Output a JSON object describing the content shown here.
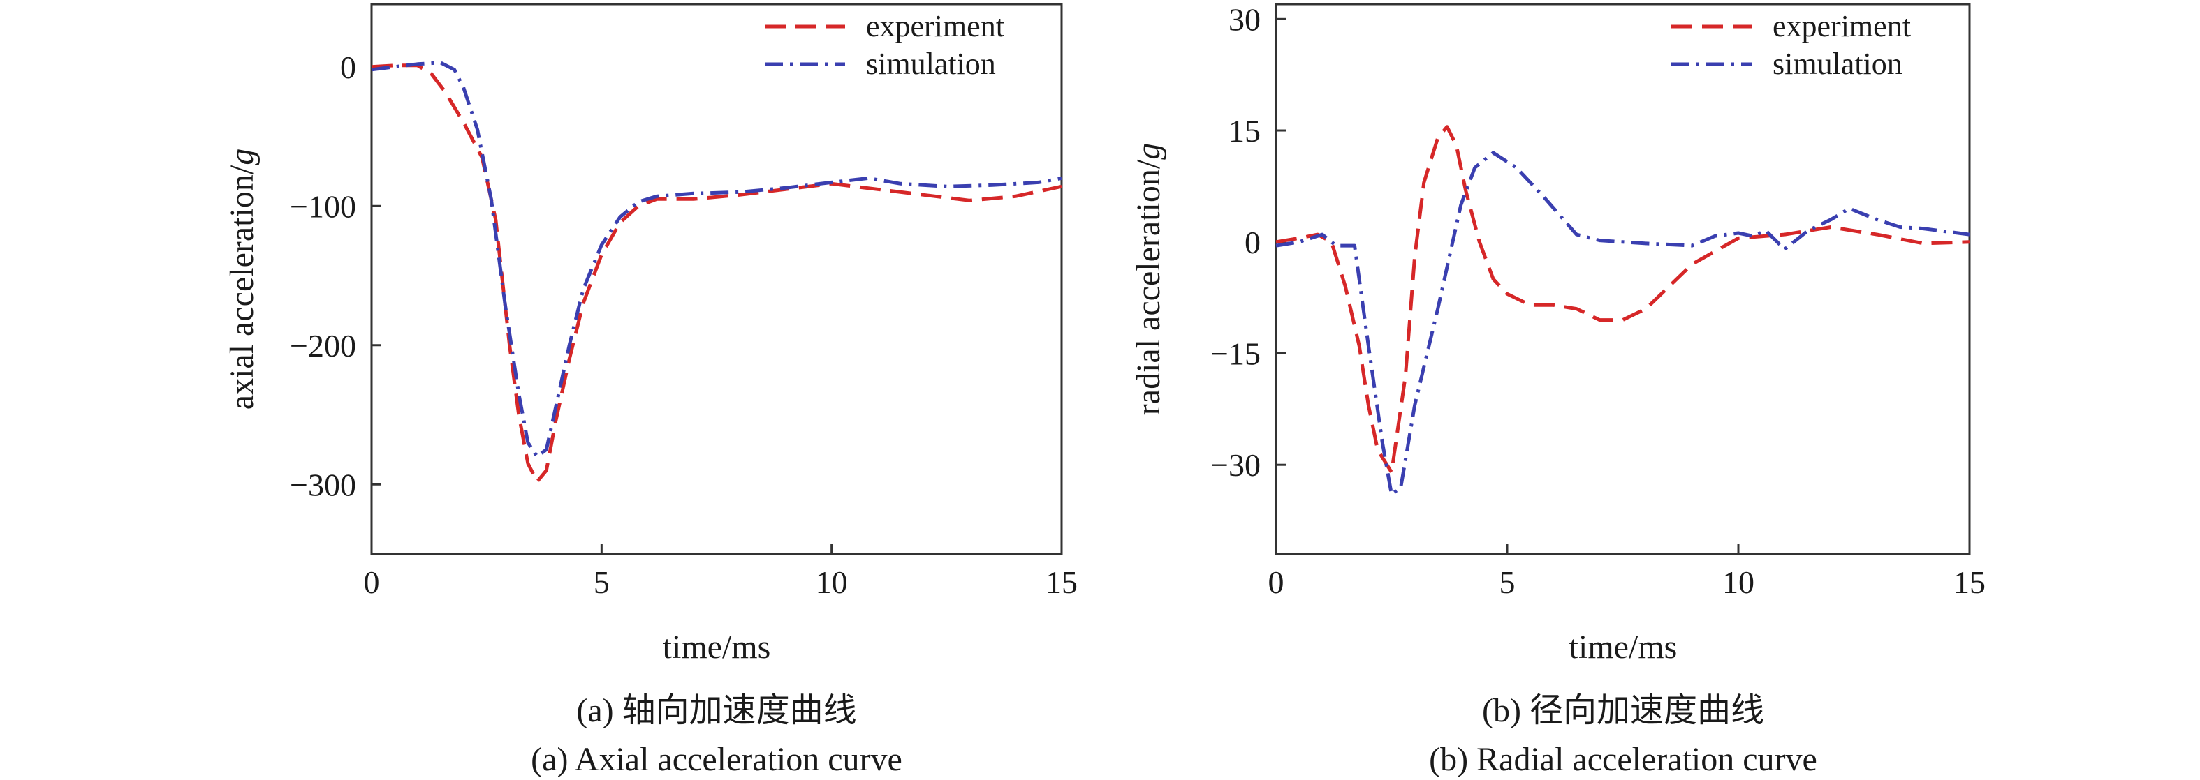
{
  "chart_data": [
    {
      "type": "line",
      "caption_cn": "(a) 轴向加速度曲线",
      "caption_en": "(a) Axial acceleration curve",
      "xlabel": "time/ms",
      "ylabel_main": "axial acceleration/",
      "ylabel_unit": "g",
      "xlim": [
        0,
        15
      ],
      "ylim": [
        -350,
        45
      ],
      "xticks": [
        0,
        5,
        10,
        15
      ],
      "xtick_labels": [
        "0",
        "5",
        "10",
        "15"
      ],
      "yticks": [
        0,
        -100,
        -200,
        -300
      ],
      "ytick_labels": [
        "0",
        "−100",
        "−200",
        "−300"
      ],
      "grid": false,
      "legend_position": "top-right",
      "series": [
        {
          "name": "experiment",
          "color": "#d62728",
          "dash": "dashed",
          "x": [
            0,
            0.5,
            1.0,
            1.3,
            1.6,
            2.0,
            2.4,
            2.7,
            3.0,
            3.2,
            3.4,
            3.6,
            3.8,
            4.0,
            4.3,
            4.6,
            5.0,
            5.4,
            5.8,
            6.2,
            7.0,
            8.0,
            9.0,
            10.0,
            11.0,
            12.0,
            13.0,
            14.0,
            15.0
          ],
          "y": [
            0,
            1,
            1,
            -5,
            -18,
            -40,
            -65,
            -110,
            -200,
            -250,
            -285,
            -298,
            -290,
            -255,
            -210,
            -170,
            -135,
            -112,
            -100,
            -95,
            -95,
            -92,
            -88,
            -84,
            -88,
            -92,
            -96,
            -93,
            -86
          ]
        },
        {
          "name": "simulation",
          "color": "#3a3fb0",
          "dash": "dashdot",
          "x": [
            0,
            0.5,
            1.0,
            1.5,
            1.8,
            2.0,
            2.3,
            2.6,
            2.9,
            3.2,
            3.4,
            3.6,
            3.8,
            4.0,
            4.3,
            4.6,
            5.0,
            5.4,
            5.8,
            6.2,
            7.0,
            8.0,
            9.0,
            10.0,
            10.8,
            11.5,
            12.5,
            13.5,
            14.5,
            15.0
          ],
          "y": [
            -2,
            0,
            2,
            3,
            -2,
            -15,
            -45,
            -95,
            -170,
            -235,
            -270,
            -280,
            -275,
            -245,
            -200,
            -160,
            -128,
            -108,
            -97,
            -93,
            -91,
            -90,
            -87,
            -83,
            -80,
            -84,
            -86,
            -85,
            -83,
            -80
          ]
        }
      ]
    },
    {
      "type": "line",
      "caption_cn": "(b) 径向加速度曲线",
      "caption_en": "(b) Radial acceleration curve",
      "xlabel": "time/ms",
      "ylabel_main": "radial acceleration/",
      "ylabel_unit": "g",
      "xlim": [
        0,
        15
      ],
      "ylim": [
        -42,
        32
      ],
      "xticks": [
        0,
        5,
        10,
        15
      ],
      "xtick_labels": [
        "0",
        "5",
        "10",
        "15"
      ],
      "yticks": [
        30,
        15,
        0,
        -15,
        -30
      ],
      "ytick_labels": [
        "30",
        "15",
        "0",
        "−15",
        "−30"
      ],
      "grid": false,
      "legend_position": "top-right",
      "series": [
        {
          "name": "experiment",
          "color": "#d62728",
          "dash": "dashed",
          "x": [
            0,
            0.5,
            0.9,
            1.2,
            1.5,
            1.8,
            2.0,
            2.2,
            2.5,
            2.8,
            3.0,
            3.2,
            3.5,
            3.7,
            3.9,
            4.1,
            4.4,
            4.7,
            5.0,
            5.5,
            6.0,
            6.5,
            7.0,
            7.5,
            8.0,
            9.0,
            10.0,
            11.0,
            12.0,
            13.0,
            14.0,
            15.0
          ],
          "y": [
            0,
            0.5,
            1,
            0,
            -6,
            -14,
            -22,
            -28,
            -31,
            -18,
            -2,
            8,
            14,
            15.5,
            13,
            7,
            0,
            -5,
            -7,
            -8.5,
            -8.5,
            -9,
            -10.5,
            -10.5,
            -9,
            -3,
            0.5,
            1,
            2,
            1,
            -0.2,
            0
          ]
        },
        {
          "name": "simulation",
          "color": "#3a3fb0",
          "dash": "dashdot",
          "x": [
            0,
            0.5,
            1.0,
            1.3,
            1.7,
            2.0,
            2.3,
            2.5,
            2.7,
            3.0,
            3.5,
            4.0,
            4.3,
            4.7,
            5.2,
            5.8,
            6.5,
            7.0,
            8.0,
            9.0,
            9.5,
            10.0,
            10.3,
            10.6,
            11.0,
            11.5,
            12.0,
            12.4,
            13.0,
            13.5,
            14.0,
            15.0
          ],
          "y": [
            -0.5,
            0,
            1,
            -0.5,
            -0.5,
            -14,
            -27,
            -34,
            -33,
            -22,
            -9,
            5,
            10,
            12,
            10,
            6,
            1,
            0.2,
            -0.2,
            -0.5,
            0.8,
            1.2,
            0.8,
            1.5,
            -1,
            1.5,
            3,
            4.5,
            3,
            2,
            1.8,
            1
          ]
        }
      ]
    }
  ]
}
